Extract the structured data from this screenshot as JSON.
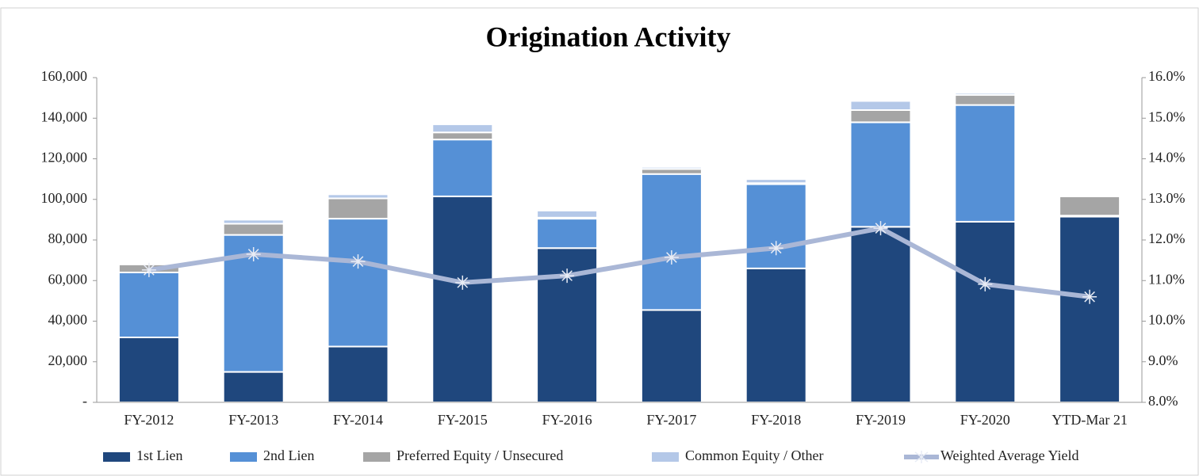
{
  "chart_data": {
    "type": "bar",
    "title": "Origination Activity",
    "categories": [
      "FY-2012",
      "FY-2013",
      "FY-2014",
      "FY-2015",
      "FY-2016",
      "FY-2017",
      "FY-2018",
      "FY-2019",
      "FY-2020",
      "YTD-Mar 21"
    ],
    "stacked": true,
    "series": [
      {
        "name": "1st Lien",
        "color": "#1f477d",
        "values": [
          32000,
          15000,
          27500,
          101500,
          76000,
          45500,
          66000,
          86500,
          89000,
          91500
        ]
      },
      {
        "name": "2nd Lien",
        "color": "#5590d6",
        "values": [
          32000,
          67500,
          63000,
          28000,
          14500,
          67000,
          41500,
          51500,
          57500,
          500
        ]
      },
      {
        "name": "Preferred Equity / Unsecured",
        "color": "#a5a5a5",
        "values": [
          4000,
          5500,
          10000,
          3500,
          500,
          2500,
          500,
          6000,
          5000,
          9500
        ]
      },
      {
        "name": "Common Equity / Other",
        "color": "#b4c8e8",
        "values": [
          500,
          2000,
          2000,
          4000,
          3500,
          1000,
          2000,
          4500,
          1000,
          500
        ]
      },
      {
        "name": "Weighted Average Yield",
        "color": "#aab7d6",
        "type": "line",
        "axis": "y2",
        "values": [
          11.26,
          11.65,
          11.47,
          10.95,
          11.12,
          11.57,
          11.8,
          12.29,
          10.91,
          10.6
        ]
      }
    ],
    "ylim": [
      0,
      160000
    ],
    "yticks": [
      {
        "value": 0,
        "label": "-"
      },
      {
        "value": 20000,
        "label": "20,000"
      },
      {
        "value": 40000,
        "label": "40,000"
      },
      {
        "value": 60000,
        "label": "60,000"
      },
      {
        "value": 80000,
        "label": "80,000"
      },
      {
        "value": 100000,
        "label": "100,000"
      },
      {
        "value": 120000,
        "label": "120,000"
      },
      {
        "value": 140000,
        "label": "140,000"
      },
      {
        "value": 160000,
        "label": "160,000"
      }
    ],
    "y2lim": [
      8,
      16
    ],
    "y2ticks": [
      {
        "value": 8,
        "label": "8.0%"
      },
      {
        "value": 9,
        "label": "9.0%"
      },
      {
        "value": 10,
        "label": "10.0%"
      },
      {
        "value": 11,
        "label": "11.0%"
      },
      {
        "value": 12,
        "label": "12.0%"
      },
      {
        "value": 13,
        "label": "13.0%"
      },
      {
        "value": 14,
        "label": "14.0%"
      },
      {
        "value": 15,
        "label": "15.0%"
      },
      {
        "value": 16,
        "label": "16.0%"
      }
    ],
    "legend": "bottom"
  }
}
